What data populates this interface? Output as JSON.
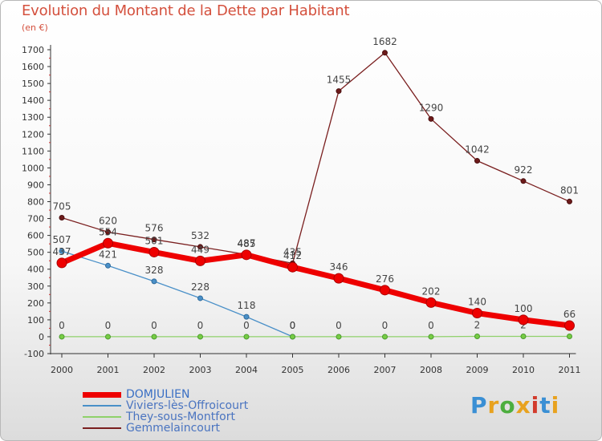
{
  "title": "Evolution du Montant de la Dette par Habitant",
  "unit": "(en €)",
  "logo": {
    "text": "Proxiti",
    "colors": [
      "#3a8fd4",
      "#e8a21e",
      "#4cae3e",
      "#e8a21e",
      "#d23b2c",
      "#3a8fd4",
      "#e8a21e"
    ]
  },
  "chart_data": {
    "type": "line",
    "x": [
      "2000",
      "2001",
      "2002",
      "2003",
      "2004",
      "2005",
      "2006",
      "2007",
      "2008",
      "2009",
      "2010",
      "2011"
    ],
    "ylim": [
      -100,
      1700
    ],
    "yticks": [
      -100,
      0,
      100,
      200,
      300,
      400,
      500,
      600,
      700,
      800,
      900,
      1000,
      1100,
      1200,
      1300,
      1400,
      1500,
      1600,
      1700
    ],
    "grid": false,
    "legend_position": "bottom-left",
    "series": [
      {
        "name": "Gemmelaincourt",
        "color": "#7a1f1f",
        "values": [
          705,
          620,
          576,
          532,
          487,
          435,
          1455,
          1682,
          1290,
          1042,
          922,
          801
        ]
      },
      {
        "name": "Viviers-lès-Offroicourt",
        "color": "#4a90c8",
        "values": [
          507,
          421,
          328,
          228,
          118,
          0,
          null,
          null,
          null,
          null,
          null,
          null
        ]
      },
      {
        "name": "They-sous-Montfort",
        "color": "#8fd16a",
        "values": [
          0,
          0,
          0,
          0,
          0,
          0,
          0,
          0,
          0,
          2,
          2,
          2
        ]
      },
      {
        "name": "DOMJULIEN",
        "color": "#ee0000",
        "values": [
          437,
          554,
          501,
          449,
          485,
          412,
          346,
          276,
          202,
          140,
          100,
          66
        ]
      }
    ],
    "legend_order": [
      "DOMJULIEN",
      "Viviers-lès-Offroicourt",
      "They-sous-Montfort",
      "Gemmelaincourt"
    ]
  }
}
